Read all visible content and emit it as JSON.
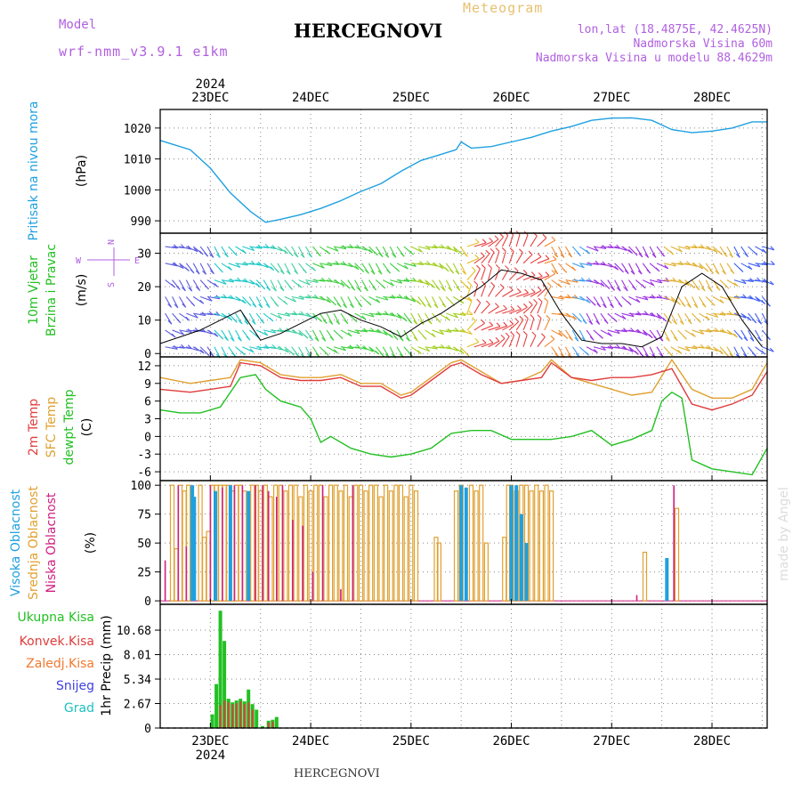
{
  "header": {
    "model_label": "Model",
    "model_name": "wrf-nmm_v3.9.1 e1km",
    "title": "HERCEGNOVI",
    "product": "Meteogram",
    "lonlat": "lon,lat (18.4875E, 42.4625N)",
    "elevation": "Nadmorska Visina 60m",
    "model_elevation": "Nadmorska Visina u modelu 88.4629m",
    "footer": "HERCEGNOVI",
    "credit": "made by Angel",
    "year_top": "2024",
    "year_bottom": "2024"
  },
  "colors": {
    "pressure": "#1fa0e0",
    "temp2m": "#e03c3c",
    "sfc": "#e0a030",
    "dewpt": "#22c022",
    "high_cloud": "#1fa0e0",
    "mid_cloud": "#e0a030",
    "low_cloud": "#d02080",
    "total_precip": "#22c022",
    "conv_precip": "#e03c3c",
    "frozen": "#f07830",
    "snow": "#4040e0",
    "hail": "#20c0c0",
    "compass": "#b060e0"
  },
  "chart_data": [
    {
      "type": "line",
      "panel": "pressure",
      "ylabel_1": "Pritisak na nivou mora",
      "ylabel_unit": "(hPa)",
      "ylim": [
        986,
        1026
      ],
      "yticks": [
        990,
        1000,
        1010,
        1020
      ],
      "categories": [
        "23DEC",
        "24DEC",
        "25DEC",
        "26DEC",
        "27DEC",
        "28DEC"
      ],
      "grid": true,
      "series": [
        {
          "x": [
            22.5,
            22.8,
            23.0,
            23.2,
            23.4,
            23.55,
            23.7,
            23.9,
            24.1,
            24.3,
            24.5,
            24.7,
            24.9,
            25.1,
            25.3,
            25.45,
            25.5,
            25.6,
            25.8,
            26.0,
            26.2,
            26.4,
            26.6,
            26.8,
            27.0,
            27.2,
            27.4,
            27.6,
            27.8,
            28.0,
            28.2,
            28.4,
            28.55
          ],
          "y": [
            1016,
            1013,
            1007,
            999,
            993,
            989.5,
            990.5,
            992,
            994,
            996.5,
            999.5,
            1002,
            1006,
            1009.5,
            1011.5,
            1013,
            1015.5,
            1013.5,
            1014,
            1015.5,
            1017,
            1019,
            1020.5,
            1022.5,
            1023.2,
            1023.3,
            1022.5,
            1019.5,
            1018.5,
            1019,
            1020,
            1022,
            1022
          ]
        }
      ]
    },
    {
      "type": "line",
      "panel": "wind",
      "ylabel_1": "10m Vjetar",
      "ylabel_2": "Brzina i Pravac",
      "ylabel_unit": "(m/s)",
      "compass": [
        "N",
        "E",
        "S",
        "W"
      ],
      "ylim": [
        -1,
        36
      ],
      "yticks": [
        0,
        10,
        20,
        30
      ],
      "grid": true,
      "series": [
        {
          "x": [
            22.5,
            22.7,
            22.9,
            23.1,
            23.3,
            23.5,
            23.7,
            23.9,
            24.1,
            24.3,
            24.5,
            24.7,
            24.9,
            25.1,
            25.3,
            25.5,
            25.7,
            25.9,
            26.1,
            26.3,
            26.5,
            26.7,
            26.9,
            27.1,
            27.3,
            27.5,
            27.7,
            27.9,
            28.1,
            28.3,
            28.5
          ],
          "y": [
            3,
            5,
            7,
            10,
            13,
            4,
            6,
            9,
            12,
            13,
            10,
            8,
            5,
            9,
            12,
            16,
            20,
            25,
            24,
            22,
            12,
            4,
            3,
            3,
            2,
            5,
            20,
            24,
            20,
            10,
            2
          ]
        }
      ]
    },
    {
      "type": "line",
      "panel": "temperature",
      "ylabel_1": "2m Temp",
      "ylabel_2": "SFC Temp",
      "ylabel_3": "dewpt Temp",
      "ylabel_unit": "(C)",
      "ylim": [
        -7.5,
        13.5
      ],
      "yticks": [
        -6,
        -3,
        0,
        3,
        6,
        9,
        12
      ],
      "grid": true,
      "series": [
        {
          "name": "2m Temp",
          "x": [
            22.5,
            22.8,
            23.0,
            23.2,
            23.3,
            23.5,
            23.7,
            23.9,
            24.1,
            24.3,
            24.5,
            24.7,
            24.9,
            25.0,
            25.2,
            25.4,
            25.5,
            25.7,
            25.9,
            26.1,
            26.3,
            26.4,
            26.6,
            26.8,
            27.0,
            27.2,
            27.4,
            27.6,
            27.8,
            28.0,
            28.2,
            28.4,
            28.55
          ],
          "y": [
            8,
            7.5,
            8,
            8.5,
            12.5,
            12,
            10,
            9.5,
            9.5,
            10,
            8.5,
            8.5,
            6.5,
            7,
            9.5,
            12,
            12.5,
            10.5,
            9,
            9.5,
            10,
            12.5,
            10,
            9.5,
            10,
            10,
            10.5,
            11.5,
            5.5,
            4.5,
            5.5,
            7,
            11
          ]
        },
        {
          "name": "SFC Temp",
          "x": [
            22.5,
            22.8,
            23.0,
            23.2,
            23.3,
            23.5,
            23.7,
            23.9,
            24.1,
            24.3,
            24.5,
            24.7,
            24.9,
            25.0,
            25.2,
            25.4,
            25.5,
            25.7,
            25.9,
            26.1,
            26.3,
            26.4,
            26.6,
            26.8,
            27.0,
            27.2,
            27.4,
            27.6,
            27.8,
            28.0,
            28.2,
            28.4,
            28.55
          ],
          "y": [
            10,
            9,
            9.5,
            10,
            13,
            12.5,
            10.5,
            10,
            10,
            10.5,
            9,
            9,
            7,
            7.5,
            10,
            12.5,
            13,
            11,
            9,
            9.5,
            11,
            13,
            10,
            9,
            8,
            7,
            7.5,
            13,
            8,
            6.5,
            6.5,
            8,
            12.5
          ]
        },
        {
          "name": "dewpt Temp",
          "x": [
            22.5,
            22.7,
            22.9,
            23.1,
            23.3,
            23.45,
            23.55,
            23.7,
            23.9,
            24.0,
            24.1,
            24.2,
            24.4,
            24.6,
            24.8,
            25.0,
            25.2,
            25.4,
            25.6,
            25.8,
            26.0,
            26.2,
            26.4,
            26.6,
            26.8,
            27.0,
            27.2,
            27.4,
            27.5,
            27.6,
            27.7,
            27.8,
            28.0,
            28.2,
            28.4,
            28.55
          ],
          "y": [
            4.5,
            4,
            4,
            5,
            10,
            10.5,
            8,
            6,
            5,
            3,
            -1,
            0,
            -2,
            -3,
            -3.5,
            -3,
            -2,
            0.5,
            1,
            1,
            -0.5,
            -0.5,
            -0.5,
            0,
            1,
            -1.5,
            -0.5,
            1,
            6,
            7.5,
            6.5,
            -4,
            -5.5,
            -6,
            -6.5,
            -2
          ]
        }
      ]
    },
    {
      "type": "bar",
      "panel": "cloud",
      "ylabel_1": "Visoka Oblacnost",
      "ylabel_2": "Srednja Oblacnost",
      "ylabel_3": "Niska Oblacnost",
      "ylabel_unit": "(%)",
      "ylim": [
        -3,
        104
      ],
      "yticks": [
        0,
        25,
        50,
        75,
        100
      ],
      "grid": true,
      "series": [
        {
          "name": "Visoka Oblacnost",
          "x": [
            22.82,
            22.84,
            23.05,
            23.2,
            23.38,
            25.5,
            25.55,
            26.0,
            26.05,
            26.1,
            26.15,
            27.55
          ],
          "y": [
            100,
            90,
            95,
            100,
            95,
            100,
            98,
            100,
            100,
            75,
            50,
            37
          ]
        },
        {
          "name": "Srednja Oblacnost",
          "x": [
            22.62,
            22.66,
            22.7,
            22.74,
            22.78,
            22.9,
            22.94,
            22.98,
            23.02,
            23.06,
            23.1,
            23.14,
            23.18,
            23.22,
            23.26,
            23.3,
            23.34,
            23.42,
            23.46,
            23.5,
            23.55,
            23.6,
            23.65,
            23.7,
            23.75,
            23.8,
            23.85,
            23.9,
            23.95,
            24.0,
            24.05,
            24.1,
            24.15,
            24.2,
            24.25,
            24.3,
            24.35,
            24.4,
            24.45,
            24.5,
            24.55,
            24.6,
            24.65,
            24.7,
            24.75,
            24.8,
            24.85,
            24.9,
            24.95,
            25.0,
            25.05,
            25.25,
            25.28,
            25.45,
            25.5,
            25.6,
            25.65,
            25.7,
            25.75,
            25.93,
            25.97,
            26.0,
            26.05,
            26.1,
            26.15,
            26.2,
            26.25,
            26.3,
            26.35,
            26.4,
            27.33,
            27.65
          ],
          "y": [
            100,
            45,
            100,
            95,
            100,
            100,
            55,
            60,
            100,
            100,
            100,
            100,
            100,
            95,
            100,
            100,
            95,
            100,
            100,
            95,
            100,
            90,
            100,
            100,
            95,
            100,
            100,
            90,
            100,
            95,
            100,
            100,
            90,
            100,
            100,
            95,
            100,
            90,
            100,
            100,
            95,
            100,
            100,
            90,
            100,
            95,
            100,
            100,
            90,
            100,
            95,
            55,
            50,
            95,
            100,
            100,
            95,
            100,
            50,
            55,
            100,
            100,
            95,
            100,
            100,
            95,
            100,
            95,
            100,
            95,
            42,
            80
          ]
        },
        {
          "name": "Niska Oblacnost",
          "x": [
            22.55,
            22.68,
            22.76,
            23.0,
            23.12,
            23.24,
            23.32,
            23.45,
            23.52,
            23.58,
            23.66,
            23.72,
            23.82,
            23.92,
            24.02,
            24.12,
            24.3,
            24.42,
            27.25,
            27.62
          ],
          "y": [
            35,
            100,
            47,
            100,
            98,
            100,
            100,
            100,
            100,
            95,
            90,
            100,
            70,
            65,
            25,
            100,
            10,
            100,
            5,
            100
          ]
        }
      ]
    },
    {
      "type": "bar",
      "panel": "precip",
      "ylabel_1": "1hr Precip (mm)",
      "ylim": [
        0,
        13.5
      ],
      "yticks": [
        0,
        2.67,
        5.34,
        8.01,
        10.68
      ],
      "grid": true,
      "legend": [
        "Ukupna Kisa",
        "Konvek.Kisa",
        "Zaledj.Kisa",
        "Snijeg",
        "Grad"
      ],
      "series": [
        {
          "name": "Ukupna Kisa",
          "x": [
            23.02,
            23.06,
            23.1,
            23.14,
            23.18,
            23.22,
            23.26,
            23.3,
            23.34,
            23.38,
            23.42,
            23.46,
            23.52,
            23.58,
            23.62,
            23.66
          ],
          "y": [
            1.5,
            4.8,
            12.8,
            9.5,
            3.2,
            2.8,
            3.0,
            3.2,
            2.9,
            4.2,
            2.6,
            2.0,
            0.2,
            0.8,
            0.9,
            1.2
          ]
        },
        {
          "name": "Konvek.Kisa",
          "x": [
            23.1,
            23.14,
            23.18,
            23.22,
            23.26,
            23.3,
            23.34,
            23.38,
            23.42,
            23.58,
            23.62
          ],
          "y": [
            2.5,
            3.0,
            2.8,
            2.6,
            2.7,
            2.9,
            2.6,
            2.8,
            2.0,
            0.6,
            0.7
          ]
        }
      ]
    }
  ]
}
